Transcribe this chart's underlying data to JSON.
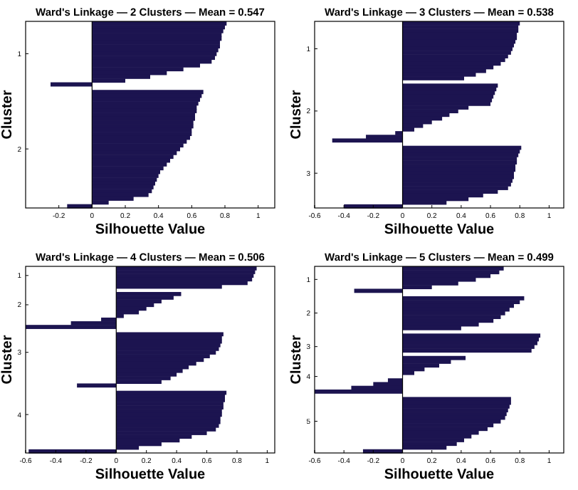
{
  "chart_data": [
    {
      "type": "bar",
      "orientation": "horizontal",
      "title": "Ward's Linkage — 2 Clusters — Mean = 0.547",
      "xlabel": "Silhouette Value",
      "ylabel": "Cluster",
      "color": "#1c1450",
      "xlim": [
        -0.4,
        1.1
      ],
      "xticks": [
        -0.2,
        0,
        0.2,
        0.4,
        0.6,
        0.8,
        1
      ],
      "categories": [
        null,
        null,
        null,
        null,
        null,
        null,
        null,
        null,
        "1",
        null,
        null,
        null,
        null,
        null,
        null,
        null,
        null,
        null,
        null,
        null,
        null,
        null,
        null,
        null,
        null,
        null,
        null,
        null,
        null,
        null,
        null,
        null,
        null,
        "2",
        null,
        null,
        null,
        null,
        null,
        null,
        null,
        null,
        null,
        null,
        null,
        null,
        null,
        null,
        null
      ],
      "values": [
        0.81,
        0.8,
        0.79,
        0.78,
        0.78,
        0.77,
        0.77,
        0.76,
        0.75,
        0.74,
        0.72,
        0.65,
        0.55,
        0.45,
        0.35,
        0.2,
        -0.25,
        null,
        0.67,
        0.66,
        0.65,
        0.64,
        0.63,
        0.63,
        0.62,
        0.62,
        0.61,
        0.61,
        0.6,
        0.6,
        0.59,
        0.57,
        0.55,
        0.53,
        0.51,
        0.49,
        0.47,
        0.45,
        0.43,
        0.41,
        0.4,
        0.39,
        0.38,
        0.37,
        0.36,
        0.34,
        0.25,
        0.1,
        -0.15
      ]
    },
    {
      "type": "bar",
      "orientation": "horizontal",
      "title": "Ward's Linkage — 3 Clusters — Mean = 0.538",
      "xlabel": "Silhouette Value",
      "ylabel": "Cluster",
      "color": "#1c1450",
      "xlim": [
        -0.6,
        1.1
      ],
      "xticks": [
        -0.6,
        -0.4,
        -0.2,
        0,
        0.2,
        0.4,
        0.6,
        0.8,
        1
      ],
      "categories": [
        null,
        null,
        null,
        null,
        null,
        null,
        null,
        "1",
        null,
        null,
        null,
        null,
        null,
        null,
        null,
        null,
        null,
        null,
        null,
        null,
        null,
        null,
        null,
        null,
        "2",
        null,
        null,
        null,
        null,
        null,
        null,
        null,
        null,
        null,
        null,
        null,
        null,
        null,
        null,
        null,
        null,
        "3",
        null,
        null,
        null,
        null,
        null,
        null,
        null,
        null,
        null
      ],
      "values": [
        0.8,
        0.79,
        0.79,
        0.78,
        0.78,
        0.77,
        0.76,
        0.75,
        0.74,
        0.72,
        0.7,
        0.67,
        0.62,
        0.57,
        0.5,
        0.42,
        null,
        0.65,
        0.64,
        0.63,
        0.62,
        0.61,
        0.6,
        0.45,
        0.38,
        0.32,
        0.27,
        0.2,
        0.14,
        0.08,
        -0.05,
        -0.25,
        -0.48,
        null,
        0.81,
        0.8,
        0.79,
        0.78,
        0.78,
        0.77,
        0.77,
        0.76,
        0.76,
        0.75,
        0.74,
        0.72,
        0.65,
        0.55,
        0.45,
        0.3,
        -0.4
      ]
    },
    {
      "type": "bar",
      "orientation": "horizontal",
      "title": "Ward's Linkage — 4 Clusters — Mean = 0.506",
      "xlabel": "Silhouette Value",
      "ylabel": "Cluster",
      "color": "#1c1450",
      "xlim": [
        -0.6,
        1.05
      ],
      "xticks": [
        -0.6,
        -0.4,
        -0.2,
        0,
        0.2,
        0.4,
        0.6,
        0.8,
        1
      ],
      "categories": [
        null,
        null,
        "1",
        null,
        null,
        null,
        null,
        null,
        null,
        null,
        "2",
        null,
        null,
        null,
        null,
        null,
        null,
        null,
        null,
        null,
        null,
        null,
        null,
        "3",
        null,
        null,
        null,
        null,
        null,
        null,
        null,
        null,
        null,
        null,
        null,
        null,
        null,
        null,
        null,
        null,
        "4",
        null,
        null,
        null,
        null,
        null,
        null,
        null,
        null,
        null,
        null
      ],
      "values": [
        0.93,
        0.92,
        0.91,
        0.9,
        0.87,
        0.7,
        null,
        0.43,
        0.38,
        0.3,
        0.25,
        0.2,
        0.15,
        0.05,
        -0.1,
        -0.3,
        -0.6,
        null,
        0.71,
        0.7,
        0.7,
        0.69,
        0.68,
        0.66,
        0.62,
        0.58,
        0.53,
        0.48,
        0.44,
        0.4,
        0.36,
        0.3,
        -0.26,
        null,
        0.73,
        0.72,
        0.72,
        0.71,
        0.71,
        0.7,
        0.7,
        0.69,
        0.69,
        0.68,
        0.66,
        0.6,
        0.5,
        0.42,
        0.3,
        0.15,
        -0.58
      ]
    },
    {
      "type": "bar",
      "orientation": "horizontal",
      "title": "Ward's Linkage — 5 Clusters — Mean = 0.499",
      "xlabel": "Silhouette Value",
      "ylabel": "Cluster",
      "color": "#1c1450",
      "xlim": [
        -0.6,
        1.1
      ],
      "xticks": [
        -0.6,
        -0.4,
        -0.2,
        0,
        0.2,
        0.4,
        0.6,
        0.8,
        1
      ],
      "categories": [
        null,
        null,
        null,
        "1",
        null,
        null,
        null,
        null,
        null,
        null,
        null,
        null,
        "2",
        null,
        null,
        null,
        null,
        null,
        null,
        null,
        null,
        "3",
        null,
        null,
        null,
        null,
        null,
        null,
        null,
        "4",
        null,
        null,
        null,
        null,
        null,
        null,
        null,
        null,
        null,
        null,
        null,
        "5",
        null,
        null,
        null,
        null,
        null,
        null,
        null,
        null
      ],
      "values": [
        0.69,
        0.66,
        0.6,
        0.5,
        0.38,
        0.2,
        -0.33,
        null,
        0.83,
        0.8,
        0.76,
        0.73,
        0.7,
        0.67,
        0.62,
        0.52,
        0.4,
        null,
        0.94,
        0.93,
        0.92,
        0.9,
        0.88,
        null,
        0.43,
        0.33,
        0.25,
        0.15,
        0.08,
        0,
        -0.1,
        -0.2,
        -0.35,
        -0.6,
        null,
        0.74,
        0.74,
        0.73,
        0.72,
        0.71,
        0.7,
        0.67,
        0.62,
        0.58,
        0.52,
        0.47,
        0.42,
        0.37,
        0.3,
        -0.27
      ]
    }
  ]
}
